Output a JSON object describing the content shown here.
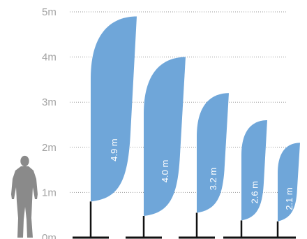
{
  "colors": {
    "flag": "#6fa6d9",
    "pole": "#111111",
    "gridline": "#9a9a9a",
    "scale_text": "#a3a3a3",
    "figure": "#8a8a8a",
    "flag_text": "#ffffff"
  },
  "scale": {
    "unit": "m",
    "ticks": [
      {
        "value": 0,
        "label": "0m"
      },
      {
        "value": 1,
        "label": "1m"
      },
      {
        "value": 2,
        "label": "2m"
      },
      {
        "value": 3,
        "label": "3m"
      },
      {
        "value": 4,
        "label": "4m"
      },
      {
        "value": 5,
        "label": "5m"
      }
    ]
  },
  "flags": [
    {
      "label": "4.9 m",
      "height_m": 4.9
    },
    {
      "label": "4.0 m",
      "height_m": 4.0
    },
    {
      "label": "3.2 m",
      "height_m": 3.2
    },
    {
      "label": "2.6 m",
      "height_m": 2.6
    },
    {
      "label": "2.1 m",
      "height_m": 2.1
    }
  ],
  "human_figure": {
    "icon": "person-silhouette-icon"
  }
}
